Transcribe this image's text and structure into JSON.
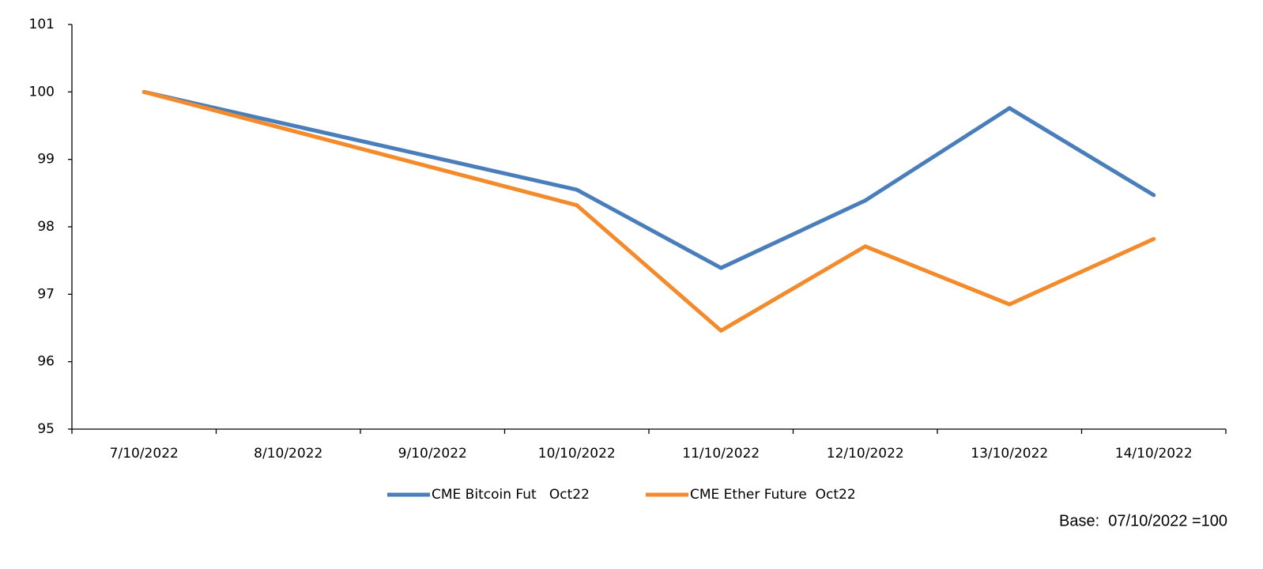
{
  "chart_data": {
    "type": "line",
    "categories": [
      "7/10/2022",
      "8/10/2022",
      "9/10/2022",
      "10/10/2022",
      "11/10/2022",
      "12/10/2022",
      "13/10/2022",
      "14/10/2022"
    ],
    "series": [
      {
        "name": "CME Bitcoin Fut   Oct22",
        "color": "#4a7ebb",
        "values": [
          100,
          null,
          null,
          98.55,
          97.39,
          98.39,
          99.76,
          98.47
        ]
      },
      {
        "name": "CME Ether Future  Oct22",
        "color": "#f38b2c",
        "values": [
          100,
          null,
          null,
          98.32,
          96.46,
          97.71,
          96.85,
          97.82
        ]
      }
    ],
    "ylim": [
      95,
      101
    ],
    "yticks": [
      95,
      96,
      97,
      98,
      99,
      100,
      101
    ],
    "grid": false,
    "legend": "bottom",
    "connect_gaps": true,
    "note": "Base:  07/10/2022 =100"
  }
}
